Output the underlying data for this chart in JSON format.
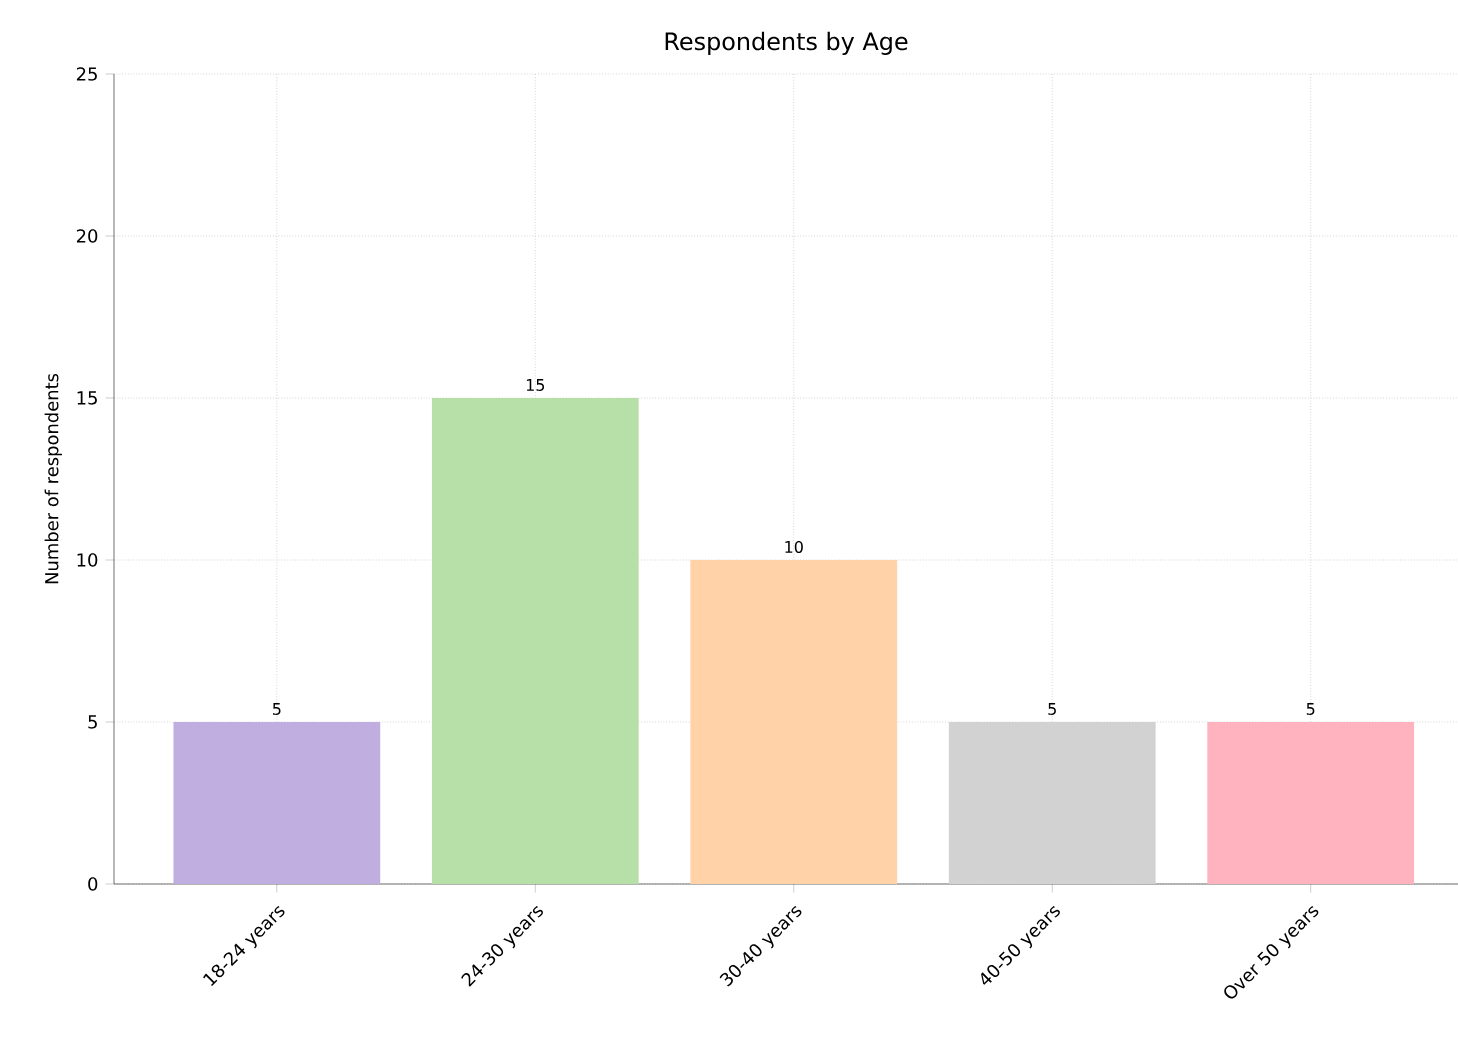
{
  "chart_data": {
    "type": "bar",
    "title": "Respondents by Age",
    "ylabel": "Number of respondents",
    "categories": [
      "18-24 years",
      "24-30 years",
      "30-40 years",
      "40-50 years",
      "Over 50 years"
    ],
    "values": [
      5,
      15,
      10,
      5,
      5
    ],
    "colors": [
      "#c0aee0",
      "#b6e0a8",
      "#ffd2a8",
      "#d2d2d2",
      "#ffb3be"
    ],
    "ylim": [
      0,
      25
    ],
    "yticks": [
      0,
      5,
      10,
      15,
      20,
      25
    ],
    "grid": true,
    "data_labels": true
  }
}
